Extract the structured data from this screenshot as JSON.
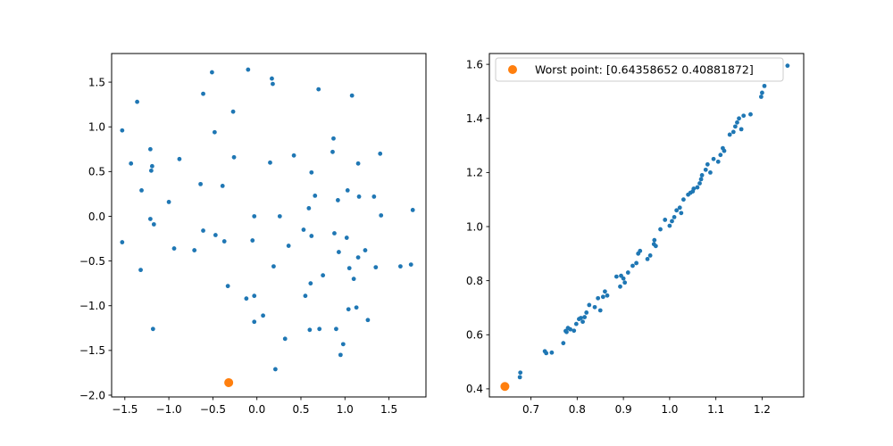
{
  "figure": {
    "background": "#ffffff"
  },
  "chart_data": [
    {
      "type": "scatter",
      "title": "",
      "xlabel": "",
      "ylabel": "",
      "xlim": [
        -1.65,
        1.92
      ],
      "ylim": [
        -2.02,
        1.82
      ],
      "xticks": [
        -1.5,
        -1.0,
        -0.5,
        0.0,
        0.5,
        1.0,
        1.5
      ],
      "xtick_labels": [
        "−1.5",
        "−1.0",
        "−0.5",
        "0.0",
        "0.5",
        "1.0",
        "1.5"
      ],
      "yticks": [
        -2.0,
        -1.5,
        -1.0,
        -0.5,
        0.0,
        0.5,
        1.0,
        1.5
      ],
      "ytick_labels": [
        "−2.0",
        "−1.5",
        "−1.0",
        "−0.5",
        "0.0",
        "0.5",
        "1.0",
        "1.5"
      ],
      "grid": false,
      "series": [
        {
          "color": "#1f77b4",
          "marker_size": "small",
          "points": [
            [
              -1.53,
              0.96
            ],
            [
              -1.36,
              1.28
            ],
            [
              -1.43,
              0.59
            ],
            [
              -1.53,
              -0.29
            ],
            [
              -1.31,
              0.29
            ],
            [
              -1.32,
              -0.6
            ],
            [
              -1.21,
              0.75
            ],
            [
              -1.19,
              0.56
            ],
            [
              -1.2,
              0.51
            ],
            [
              -1.21,
              -0.03
            ],
            [
              -1.17,
              -0.09
            ],
            [
              -1.18,
              -1.26
            ],
            [
              -1.0,
              0.16
            ],
            [
              -0.94,
              -0.36
            ],
            [
              -0.88,
              0.64
            ],
            [
              -0.71,
              -0.38
            ],
            [
              -0.64,
              0.36
            ],
            [
              -0.61,
              1.37
            ],
            [
              -0.61,
              -0.16
            ],
            [
              -0.51,
              1.61
            ],
            [
              -0.48,
              0.94
            ],
            [
              -0.47,
              -0.21
            ],
            [
              -0.39,
              0.34
            ],
            [
              -0.37,
              -0.28
            ],
            [
              -0.33,
              -0.78
            ],
            [
              -0.27,
              1.17
            ],
            [
              -0.26,
              0.66
            ],
            [
              -0.12,
              -0.92
            ],
            [
              -0.1,
              1.64
            ],
            [
              -0.05,
              -0.27
            ],
            [
              -0.03,
              0.0
            ],
            [
              -0.03,
              -0.89
            ],
            [
              -0.03,
              -1.18
            ],
            [
              0.07,
              -1.11
            ],
            [
              0.15,
              0.6
            ],
            [
              0.17,
              1.54
            ],
            [
              0.18,
              1.48
            ],
            [
              0.19,
              -0.56
            ],
            [
              0.21,
              -1.71
            ],
            [
              0.26,
              0.0
            ],
            [
              0.32,
              -1.37
            ],
            [
              0.36,
              -0.33
            ],
            [
              0.42,
              0.68
            ],
            [
              0.53,
              -0.15
            ],
            [
              0.55,
              -0.89
            ],
            [
              0.59,
              0.09
            ],
            [
              0.6,
              -1.27
            ],
            [
              0.62,
              0.49
            ],
            [
              0.62,
              -0.22
            ],
            [
              0.61,
              -0.75
            ],
            [
              0.66,
              0.23
            ],
            [
              0.7,
              1.42
            ],
            [
              0.71,
              -1.26
            ],
            [
              0.75,
              -0.66
            ],
            [
              0.86,
              0.72
            ],
            [
              0.87,
              0.87
            ],
            [
              0.88,
              -0.19
            ],
            [
              0.9,
              -1.26
            ],
            [
              0.92,
              0.18
            ],
            [
              0.93,
              -0.4
            ],
            [
              0.95,
              -1.55
            ],
            [
              0.98,
              -1.43
            ],
            [
              1.02,
              -0.24
            ],
            [
              1.03,
              0.29
            ],
            [
              1.04,
              -1.04
            ],
            [
              1.05,
              -0.58
            ],
            [
              1.08,
              1.35
            ],
            [
              1.1,
              -0.7
            ],
            [
              1.13,
              -1.02
            ],
            [
              1.15,
              0.59
            ],
            [
              1.15,
              -0.46
            ],
            [
              1.16,
              0.22
            ],
            [
              1.23,
              -0.38
            ],
            [
              1.26,
              -1.16
            ],
            [
              1.33,
              0.22
            ],
            [
              1.35,
              -0.57
            ],
            [
              1.4,
              0.7
            ],
            [
              1.41,
              0.01
            ],
            [
              1.63,
              -0.56
            ],
            [
              1.75,
              -0.54
            ],
            [
              1.77,
              0.07
            ]
          ]
        },
        {
          "color": "#ff7f0e",
          "marker_size": "large",
          "points": [
            [
              -0.32,
              -1.86
            ]
          ]
        }
      ]
    },
    {
      "type": "scatter",
      "title": "",
      "xlabel": "",
      "ylabel": "",
      "xlim": [
        0.61,
        1.29
      ],
      "ylim": [
        0.37,
        1.64
      ],
      "xticks": [
        0.7,
        0.8,
        0.9,
        1.0,
        1.1,
        1.2
      ],
      "xtick_labels": [
        "0.7",
        "0.8",
        "0.9",
        "1.0",
        "1.1",
        "1.2"
      ],
      "yticks": [
        0.4,
        0.6,
        0.8,
        1.0,
        1.2,
        1.4,
        1.6
      ],
      "ytick_labels": [
        "0.4",
        "0.6",
        "0.8",
        "1.0",
        "1.2",
        "1.4",
        "1.6"
      ],
      "grid": false,
      "legend_position": "top-left",
      "series": [
        {
          "color": "#1f77b4",
          "marker_size": "small",
          "points": [
            [
              0.676,
              0.443
            ],
            [
              0.677,
              0.46
            ],
            [
              0.73,
              0.539
            ],
            [
              0.733,
              0.532
            ],
            [
              0.745,
              0.534
            ],
            [
              0.77,
              0.569
            ],
            [
              0.775,
              0.614
            ],
            [
              0.777,
              0.61
            ],
            [
              0.78,
              0.625
            ],
            [
              0.785,
              0.62
            ],
            [
              0.793,
              0.615
            ],
            [
              0.798,
              0.64
            ],
            [
              0.804,
              0.658
            ],
            [
              0.808,
              0.662
            ],
            [
              0.812,
              0.648
            ],
            [
              0.816,
              0.665
            ],
            [
              0.82,
              0.682
            ],
            [
              0.826,
              0.71
            ],
            [
              0.838,
              0.702
            ],
            [
              0.845,
              0.735
            ],
            [
              0.85,
              0.69
            ],
            [
              0.856,
              0.74
            ],
            [
              0.86,
              0.76
            ],
            [
              0.865,
              0.745
            ],
            [
              0.885,
              0.815
            ],
            [
              0.893,
              0.778
            ],
            [
              0.895,
              0.818
            ],
            [
              0.9,
              0.808
            ],
            [
              0.903,
              0.793
            ],
            [
              0.91,
              0.83
            ],
            [
              0.92,
              0.855
            ],
            [
              0.928,
              0.865
            ],
            [
              0.932,
              0.9
            ],
            [
              0.936,
              0.91
            ],
            [
              0.952,
              0.88
            ],
            [
              0.958,
              0.893
            ],
            [
              0.966,
              0.935
            ],
            [
              0.967,
              0.95
            ],
            [
              0.97,
              0.928
            ],
            [
              0.98,
              0.99
            ],
            [
              0.99,
              1.025
            ],
            [
              1.0,
              1.003
            ],
            [
              1.005,
              1.02
            ],
            [
              1.01,
              1.035
            ],
            [
              1.015,
              1.06
            ],
            [
              1.022,
              1.07
            ],
            [
              1.025,
              1.05
            ],
            [
              1.03,
              1.1
            ],
            [
              1.04,
              1.118
            ],
            [
              1.045,
              1.125
            ],
            [
              1.05,
              1.13
            ],
            [
              1.052,
              1.14
            ],
            [
              1.06,
              1.145
            ],
            [
              1.065,
              1.16
            ],
            [
              1.068,
              1.175
            ],
            [
              1.07,
              1.19
            ],
            [
              1.078,
              1.21
            ],
            [
              1.082,
              1.23
            ],
            [
              1.088,
              1.2
            ],
            [
              1.095,
              1.25
            ],
            [
              1.105,
              1.24
            ],
            [
              1.11,
              1.265
            ],
            [
              1.115,
              1.29
            ],
            [
              1.118,
              1.28
            ],
            [
              1.13,
              1.34
            ],
            [
              1.138,
              1.35
            ],
            [
              1.142,
              1.37
            ],
            [
              1.146,
              1.385
            ],
            [
              1.15,
              1.4
            ],
            [
              1.155,
              1.36
            ],
            [
              1.16,
              1.41
            ],
            [
              1.175,
              1.415
            ],
            [
              1.198,
              1.48
            ],
            [
              1.2,
              1.495
            ],
            [
              1.205,
              1.52
            ],
            [
              1.255,
              1.595
            ]
          ]
        },
        {
          "color": "#ff7f0e",
          "marker_size": "large",
          "name": "Worst point: [0.64358652 0.40881872]",
          "points": [
            [
              0.6436,
              0.4088
            ]
          ]
        }
      ]
    }
  ]
}
